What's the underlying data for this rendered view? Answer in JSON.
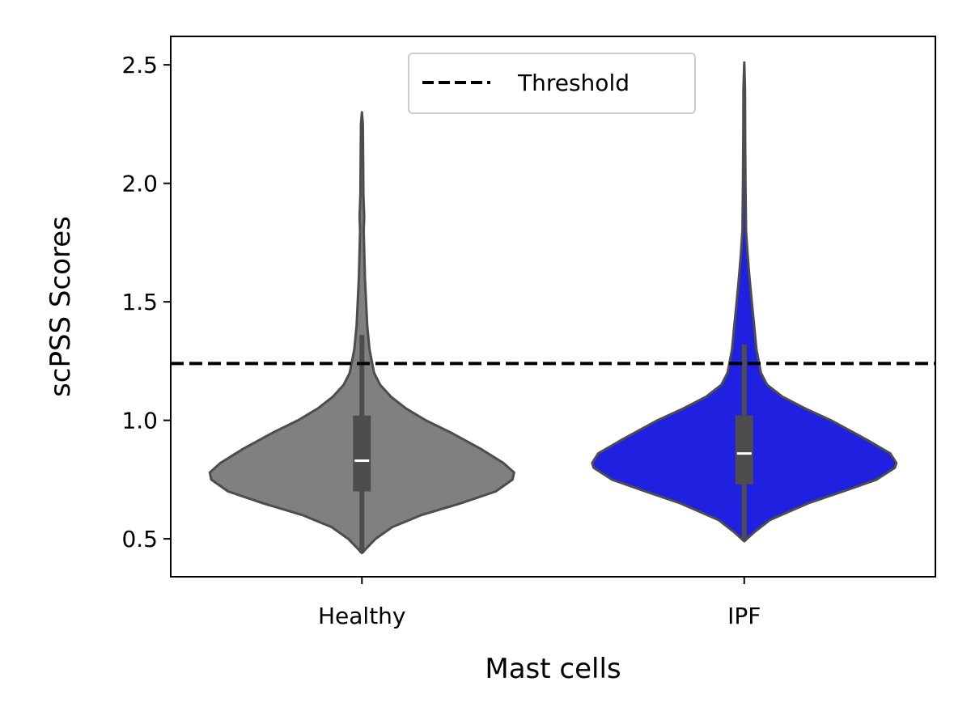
{
  "chart_data": {
    "type": "violin",
    "title": "",
    "xlabel": "Mast cells",
    "ylabel": "scPSS Scores",
    "ylim": [
      0.34,
      2.62
    ],
    "yticks": [
      "0.5",
      "1.0",
      "1.5",
      "2.0",
      "2.5"
    ],
    "ytick_values": [
      0.5,
      1.0,
      1.5,
      2.0,
      2.5
    ],
    "categories": [
      "Healthy",
      "IPF"
    ],
    "colors": [
      "#808080",
      "#2020e0"
    ],
    "edge_color": "#4d4d4d",
    "threshold": {
      "value": 1.24,
      "label": "Threshold",
      "style": "dashed",
      "color": "#000000"
    },
    "legend": {
      "position": "top-center",
      "entries": [
        "Threshold"
      ]
    },
    "grid": false,
    "violins": [
      {
        "name": "Healthy",
        "min": 0.44,
        "q1": 0.7,
        "median": 0.83,
        "q3": 1.02,
        "whisker_high": 1.36,
        "max": 2.3,
        "density": [
          [
            0.44,
            0.0
          ],
          [
            0.5,
            0.09
          ],
          [
            0.55,
            0.2
          ],
          [
            0.6,
            0.39
          ],
          [
            0.65,
            0.65
          ],
          [
            0.7,
            0.88
          ],
          [
            0.75,
            0.99
          ],
          [
            0.78,
            1.0
          ],
          [
            0.82,
            0.93
          ],
          [
            0.88,
            0.78
          ],
          [
            0.95,
            0.58
          ],
          [
            1.0,
            0.42
          ],
          [
            1.05,
            0.29
          ],
          [
            1.1,
            0.19
          ],
          [
            1.15,
            0.12
          ],
          [
            1.2,
            0.08
          ],
          [
            1.3,
            0.05
          ],
          [
            1.4,
            0.035
          ],
          [
            1.6,
            0.02
          ],
          [
            1.8,
            0.012
          ],
          [
            1.86,
            0.015
          ],
          [
            1.95,
            0.01
          ],
          [
            2.1,
            0.008
          ],
          [
            2.25,
            0.006
          ],
          [
            2.3,
            0.0
          ]
        ]
      },
      {
        "name": "IPF",
        "min": 0.49,
        "q1": 0.73,
        "median": 0.86,
        "q3": 1.02,
        "whisker_high": 1.32,
        "max": 2.51,
        "density": [
          [
            0.49,
            0.0
          ],
          [
            0.53,
            0.07
          ],
          [
            0.58,
            0.17
          ],
          [
            0.65,
            0.42
          ],
          [
            0.7,
            0.65
          ],
          [
            0.75,
            0.87
          ],
          [
            0.8,
            0.99
          ],
          [
            0.82,
            1.0
          ],
          [
            0.86,
            0.96
          ],
          [
            0.92,
            0.8
          ],
          [
            1.0,
            0.57
          ],
          [
            1.05,
            0.4
          ],
          [
            1.1,
            0.25
          ],
          [
            1.15,
            0.15
          ],
          [
            1.2,
            0.11
          ],
          [
            1.3,
            0.08
          ],
          [
            1.4,
            0.065
          ],
          [
            1.5,
            0.05
          ],
          [
            1.6,
            0.035
          ],
          [
            1.7,
            0.022
          ],
          [
            1.8,
            0.012
          ],
          [
            2.0,
            0.008
          ],
          [
            2.2,
            0.006
          ],
          [
            2.4,
            0.005
          ],
          [
            2.51,
            0.0
          ]
        ]
      }
    ]
  }
}
